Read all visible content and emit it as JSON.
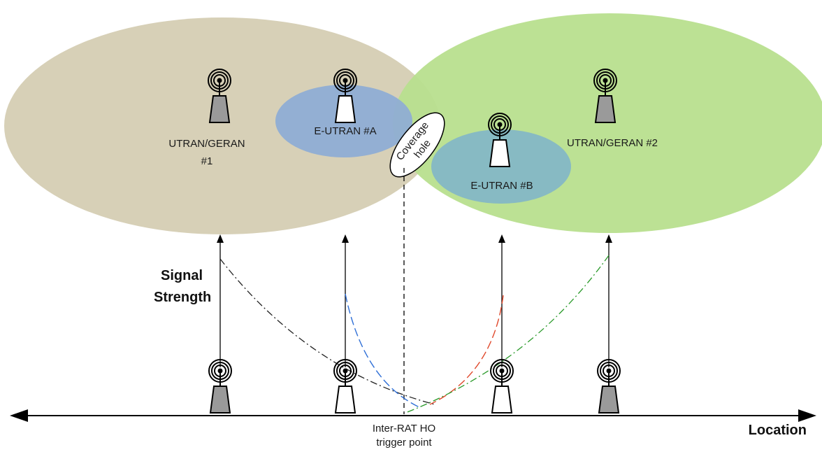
{
  "cells": {
    "utran1": {
      "line1": "UTRAN/GERAN",
      "line2": "#1",
      "color": "#d7d0b7"
    },
    "utran2": {
      "label": "UTRAN/GERAN #2",
      "color": "#b8df8e"
    },
    "eutranA": {
      "label": "E-UTRAN #A",
      "color": "#8fadd4"
    },
    "eutranB": {
      "label": "E-UTRAN #B",
      "color": "#84b7c5"
    }
  },
  "coverage_hole": {
    "line1": "Coverage",
    "line2": "hole"
  },
  "signal_label": {
    "line1": "Signal",
    "line2": "Strength"
  },
  "axis_label": "Location",
  "trigger": {
    "line1": "Inter-RAT HO",
    "line2": "trigger point"
  },
  "curve_colors": {
    "utran1": "#222222",
    "eutranA": "#2f6fd6",
    "eutranB": "#e0482b",
    "utran2": "#2a9a2a"
  },
  "icon_fills": {
    "utran": "#9a9a9a",
    "eutran": "#ffffff"
  }
}
